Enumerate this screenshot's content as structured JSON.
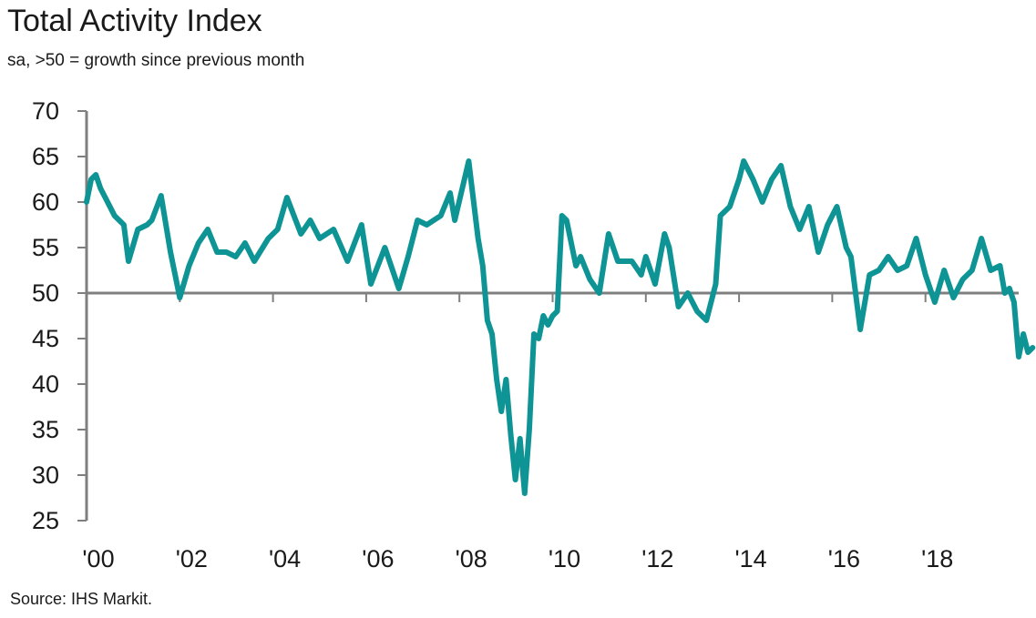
{
  "chart_data": {
    "type": "line",
    "title": "Total Activity Index",
    "subtitle": "sa, >50 = growth since previous month",
    "source": "Source: IHS Markit.",
    "ylim": [
      25,
      70
    ],
    "yticks": [
      70,
      65,
      60,
      55,
      50,
      45,
      40,
      35,
      30,
      25
    ],
    "xlim": [
      2000.0,
      2020.0
    ],
    "xticks": [
      {
        "label": "'00",
        "value": 2000
      },
      {
        "label": "'02",
        "value": 2002
      },
      {
        "label": "'04",
        "value": 2004
      },
      {
        "label": "'06",
        "value": 2006
      },
      {
        "label": "'08",
        "value": 2008
      },
      {
        "label": "'10",
        "value": 2010
      },
      {
        "label": "'12",
        "value": 2012
      },
      {
        "label": "'14",
        "value": 2014
      },
      {
        "label": "'16",
        "value": 2016
      },
      {
        "label": "'18",
        "value": 2018
      }
    ],
    "reference_line": 50,
    "grid": false,
    "legend": "none",
    "series": [
      {
        "color": "#0e9494",
        "x": [
          2000.0,
          2000.1,
          2000.2,
          2000.3,
          2000.4,
          2000.6,
          2000.8,
          2000.9,
          2001.1,
          2001.3,
          2001.4,
          2001.6,
          2001.8,
          2002.0,
          2002.2,
          2002.4,
          2002.6,
          2002.8,
          2003.0,
          2003.2,
          2003.4,
          2003.6,
          2003.9,
          2004.1,
          2004.3,
          2004.6,
          2004.8,
          2005.0,
          2005.3,
          2005.6,
          2005.9,
          2006.1,
          2006.4,
          2006.7,
          2006.9,
          2007.1,
          2007.3,
          2007.6,
          2007.8,
          2007.9,
          2008.2,
          2008.4,
          2008.5,
          2008.6,
          2008.7,
          2008.8,
          2008.9,
          2009.0,
          2009.1,
          2009.2,
          2009.3,
          2009.4,
          2009.5,
          2009.6,
          2009.7,
          2009.8,
          2009.9,
          2010.0,
          2010.1,
          2010.2,
          2010.3,
          2010.5,
          2010.6,
          2010.8,
          2011.0,
          2011.2,
          2011.4,
          2011.7,
          2011.9,
          2012.0,
          2012.2,
          2012.4,
          2012.5,
          2012.7,
          2012.9,
          2013.1,
          2013.3,
          2013.5,
          2013.6,
          2013.8,
          2014.0,
          2014.1,
          2014.3,
          2014.5,
          2014.7,
          2014.9,
          2015.1,
          2015.3,
          2015.5,
          2015.7,
          2015.9,
          2016.1,
          2016.3,
          2016.4,
          2016.6,
          2016.8,
          2017.0,
          2017.2,
          2017.4,
          2017.6,
          2017.8,
          2018.0,
          2018.2,
          2018.4,
          2018.6,
          2018.8,
          2019.0,
          2019.2,
          2019.4,
          2019.6,
          2019.7,
          2019.8
        ],
        "y": [
          60.0,
          62.5,
          63.0,
          61.5,
          60.5,
          58.5,
          57.5,
          53.5,
          57.0,
          57.5,
          58.0,
          60.7,
          54.5,
          49.5,
          53.0,
          55.5,
          57.0,
          54.5,
          54.5,
          54.0,
          55.5,
          53.5,
          56.0,
          57.0,
          60.5,
          56.5,
          58.0,
          56.0,
          57.0,
          53.5,
          57.5,
          51.0,
          55.0,
          50.5,
          54.0,
          58.0,
          57.5,
          58.5,
          61.0,
          58.0,
          64.5,
          56.0,
          53.0,
          47.0,
          45.5,
          40.5,
          37.0,
          40.5,
          34.5,
          29.5,
          34.0,
          28.0,
          35.0,
          45.5,
          45.0,
          47.5,
          46.5,
          47.5,
          48.0,
          58.5,
          58.0,
          53.0,
          54.0,
          51.5,
          50.0,
          56.5,
          53.5,
          53.5,
          52.0,
          54.0,
          51.0,
          56.5,
          55.0,
          48.5,
          50.0,
          48.0,
          47.0,
          51.0,
          58.5,
          59.5,
          62.5,
          64.5,
          62.5,
          60.0,
          62.5,
          64.0,
          59.5,
          57.0,
          59.5,
          54.5,
          57.5,
          59.5,
          55.0,
          54.0,
          46.0,
          52.0,
          52.5,
          54.0,
          52.5,
          53.0,
          56.0,
          52.0,
          49.0,
          52.5,
          49.5,
          51.5,
          52.5,
          56.0,
          52.5,
          53.0,
          50.0,
          50.5
        ]
      },
      {
        "color": "#0e9494",
        "x": [
          2019.8,
          2019.9,
          2020.0,
          2020.1,
          2020.2,
          2020.3
        ],
        "y": [
          50.5,
          49.0,
          43.0,
          45.5,
          43.5,
          44.0
        ]
      }
    ]
  }
}
